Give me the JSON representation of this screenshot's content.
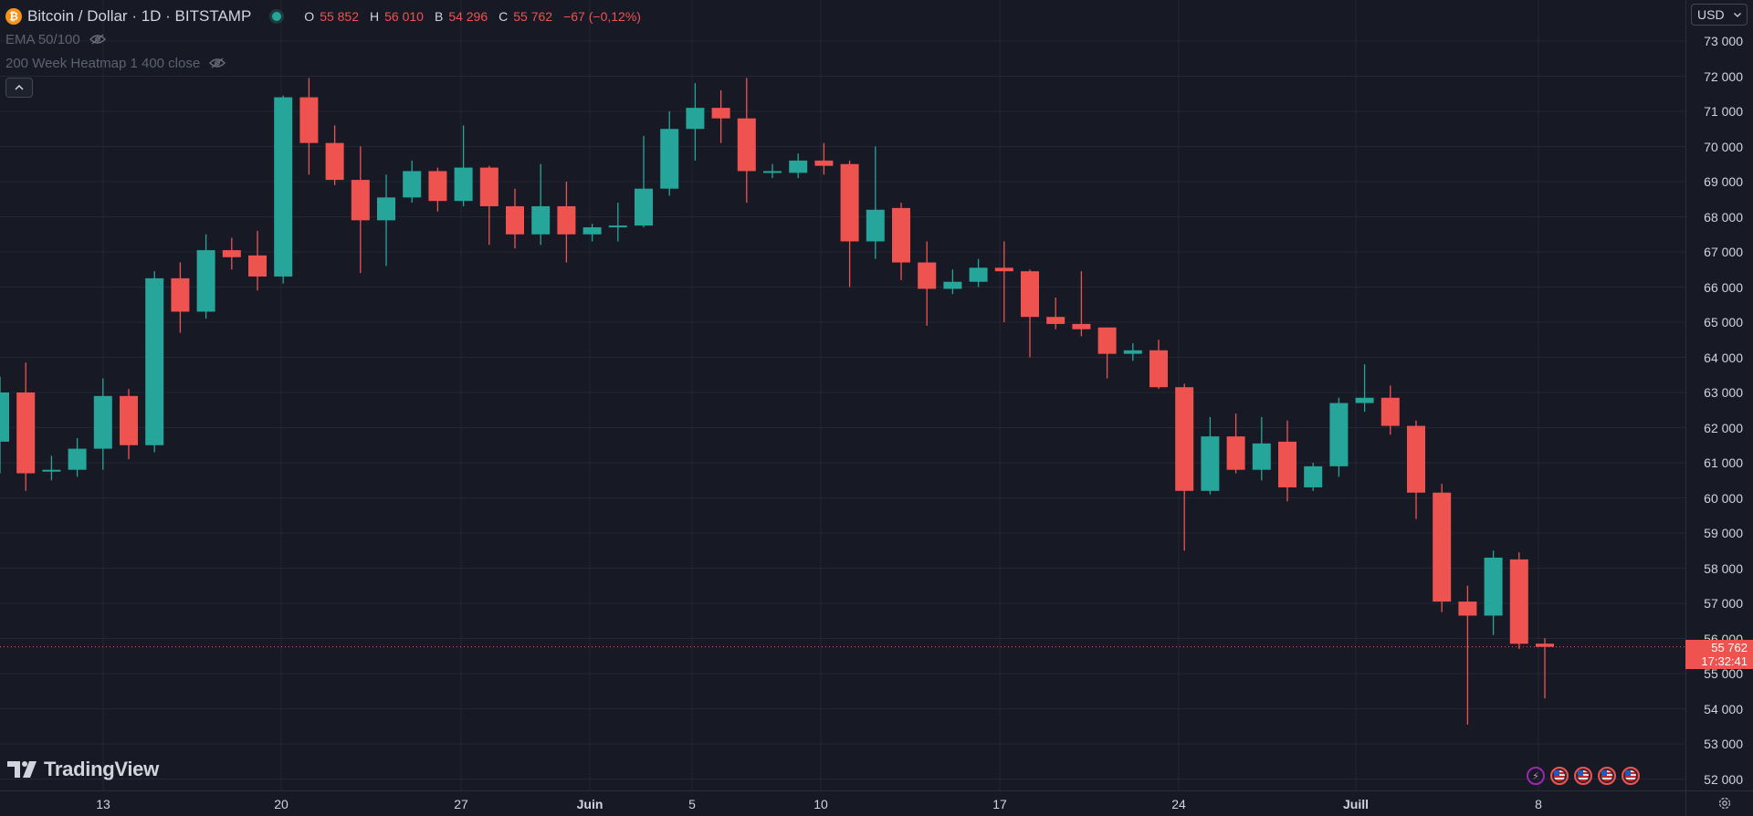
{
  "symbol": {
    "title": "Bitcoin / Dollar · 1D · BITSTAMP",
    "coin_icon": "bitcoin-icon",
    "open_label": "O",
    "open": "55 852",
    "high_label": "H",
    "high": "56 010",
    "low_label": "B",
    "low": "54 296",
    "close_label": "C",
    "close": "55 762",
    "change": "−67 (−0,12%)"
  },
  "indicators": [
    {
      "label": "EMA 50/100",
      "icon": "eye-off-icon"
    },
    {
      "label": "200 Week Heatmap 1 400 close",
      "icon": "eye-off-icon"
    }
  ],
  "collapse_icon": "chevron-up-icon",
  "currency": "USD",
  "last_price": {
    "value": "55 762",
    "countdown": "17:32:41"
  },
  "brand": "TradingView",
  "colors": {
    "up": "#26a69a",
    "down": "#ef5350",
    "bg": "#171a25",
    "grid": "#232733"
  },
  "events": [
    "lightning-icon",
    "us-flag-icon",
    "us-flag-icon",
    "us-flag-icon",
    "us-flag-icon"
  ],
  "settings_icon": "gear-icon",
  "chart_data": {
    "type": "candlestick",
    "y_ticks": [
      73000,
      72000,
      71000,
      70000,
      69000,
      68000,
      67000,
      66000,
      65000,
      64000,
      63000,
      62000,
      61000,
      60000,
      59000,
      58000,
      57000,
      56000,
      55000,
      54000,
      53000,
      52000
    ],
    "y_tick_labels": [
      "73 000",
      "72 000",
      "71 000",
      "70 000",
      "69 000",
      "68 000",
      "67 000",
      "66 000",
      "65 000",
      "64 000",
      "63 000",
      "62 000",
      "61 000",
      "60 000",
      "59 000",
      "58 000",
      "57 000",
      "56 000",
      "55 000",
      "54 000",
      "53 000",
      "52 000"
    ],
    "ylim": [
      52000,
      73000
    ],
    "x_labels": [
      "13",
      "20",
      "27",
      "Juin",
      "5",
      "10",
      "17",
      "24",
      "Juill",
      "8"
    ],
    "x_label_bold": [
      "Juin",
      "Juill"
    ],
    "ohlc": [
      [
        61600,
        63450,
        60700,
        63000
      ],
      [
        63000,
        63850,
        60200,
        60700
      ],
      [
        60800,
        61200,
        60500,
        60800
      ],
      [
        60800,
        61700,
        60600,
        61400
      ],
      [
        61400,
        63400,
        60800,
        62900
      ],
      [
        62900,
        63100,
        61100,
        61500
      ],
      [
        61500,
        66450,
        61300,
        66250
      ],
      [
        66250,
        66700,
        64700,
        65300
      ],
      [
        65300,
        67500,
        65100,
        67050
      ],
      [
        67050,
        67400,
        66500,
        66850
      ],
      [
        66900,
        67600,
        65900,
        66300
      ],
      [
        66300,
        71450,
        66100,
        71400
      ],
      [
        71400,
        71950,
        69200,
        70100
      ],
      [
        70100,
        70600,
        68900,
        69050
      ],
      [
        69050,
        70000,
        66400,
        67900
      ],
      [
        67900,
        69200,
        66600,
        68550
      ],
      [
        68550,
        69600,
        68400,
        69300
      ],
      [
        69300,
        69400,
        68150,
        68450
      ],
      [
        68450,
        70600,
        68300,
        69400
      ],
      [
        69400,
        69450,
        67200,
        68300
      ],
      [
        68300,
        68800,
        67100,
        67500
      ],
      [
        67500,
        69500,
        67200,
        68300
      ],
      [
        68300,
        69000,
        66700,
        67500
      ],
      [
        67500,
        67800,
        67300,
        67700
      ],
      [
        67700,
        68400,
        67300,
        67750
      ],
      [
        67750,
        70300,
        67700,
        68800
      ],
      [
        68800,
        71000,
        68600,
        70500
      ],
      [
        70500,
        71800,
        69600,
        71100
      ],
      [
        71100,
        71600,
        70100,
        70800
      ],
      [
        70800,
        71950,
        68400,
        69300
      ],
      [
        69300,
        69500,
        69100,
        69300
      ],
      [
        69250,
        69800,
        69100,
        69600
      ],
      [
        69600,
        70100,
        69200,
        69450
      ],
      [
        69500,
        69600,
        66000,
        67300
      ],
      [
        67300,
        70000,
        66800,
        68200
      ],
      [
        68250,
        68400,
        66200,
        66700
      ],
      [
        66700,
        67300,
        64900,
        65950
      ],
      [
        65950,
        66500,
        65800,
        66150
      ],
      [
        66150,
        66800,
        66000,
        66550
      ],
      [
        66550,
        67300,
        65000,
        66450
      ],
      [
        66450,
        66500,
        64000,
        65150
      ],
      [
        65150,
        65700,
        64800,
        64950
      ],
      [
        64950,
        66450,
        64600,
        64800
      ],
      [
        64850,
        64850,
        63400,
        64100
      ],
      [
        64100,
        64400,
        63900,
        64200
      ],
      [
        64200,
        64500,
        63100,
        63150
      ],
      [
        63150,
        63250,
        58500,
        60200
      ],
      [
        60200,
        62300,
        60100,
        61750
      ],
      [
        61750,
        62400,
        60700,
        60800
      ],
      [
        60800,
        62300,
        60500,
        61550
      ],
      [
        61600,
        62200,
        59900,
        60300
      ],
      [
        60300,
        61000,
        60200,
        60900
      ],
      [
        60900,
        62850,
        60600,
        62700
      ],
      [
        62700,
        63800,
        62450,
        62850
      ],
      [
        62850,
        63200,
        61800,
        62050
      ],
      [
        62050,
        62200,
        59400,
        60150
      ],
      [
        60150,
        60400,
        56750,
        57050
      ],
      [
        57050,
        57500,
        53550,
        56650
      ],
      [
        56650,
        58500,
        56100,
        58300
      ],
      [
        58250,
        58450,
        55700,
        55850
      ],
      [
        55852,
        56010,
        54296,
        55762
      ]
    ]
  }
}
